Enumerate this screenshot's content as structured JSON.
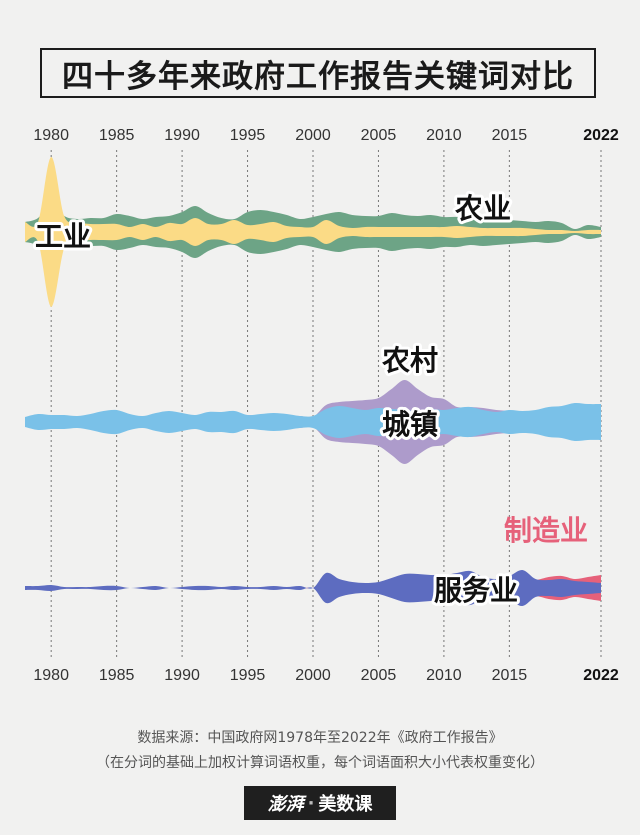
{
  "title": "四十多年来政府工作报告关键词对比",
  "source_line1": "数据来源：中国政府网1978年至2022年《政府工作报告》",
  "source_line2": "（在分词的基础上加权计算词语权重，每个词语面积大小代表权重变化）",
  "logo": {
    "part1": "澎湃",
    "sep": "·",
    "part2": "美数课"
  },
  "colors": {
    "agri": "#6da486",
    "ind": "#fbdb86",
    "rural": "#ad9bcb",
    "town": "#7ac1e8",
    "mfg": "#e6617a",
    "svc": "#5d6cc0"
  },
  "chart_data": {
    "type": "area",
    "x_ticks": [
      "1980",
      "1985",
      "1990",
      "1995",
      "2000",
      "2005",
      "2010",
      "2015",
      "2022"
    ],
    "years": [
      1978,
      1979,
      1980,
      1981,
      1982,
      1983,
      1984,
      1985,
      1986,
      1987,
      1988,
      1989,
      1990,
      1991,
      1992,
      1993,
      1994,
      1995,
      1996,
      1997,
      1998,
      1999,
      2000,
      2001,
      2002,
      2003,
      2004,
      2005,
      2006,
      2007,
      2008,
      2009,
      2010,
      2011,
      2012,
      2013,
      2014,
      2015,
      2016,
      2017,
      2018,
      2019,
      2020,
      2021,
      2022
    ],
    "groups": [
      {
        "series": [
          {
            "name": "农业",
            "color_key": "agri",
            "values": [
              10,
              14,
              30,
              16,
              13,
              14,
              14,
              18,
              16,
              13,
              15,
              16,
              20,
              26,
              19,
              14,
              13,
              20,
              22,
              20,
              17,
              13,
              15,
              18,
              20,
              17,
              16,
              16,
              19,
              17,
              16,
              17,
              15,
              15,
              13,
              14,
              13,
              12,
              11,
              10,
              11,
              9,
              3,
              7,
              5
            ]
          },
          {
            "name": "工业",
            "color_key": "ind",
            "values": [
              10,
              10,
              75,
              16,
              10,
              8,
              8,
              8,
              5,
              8,
              5,
              9,
              8,
              14,
              8,
              8,
              12,
              7,
              8,
              10,
              6,
              5,
              5,
              12,
              6,
              4,
              5,
              5,
              5,
              5,
              5,
              5,
              5,
              6,
              5,
              4,
              4,
              4,
              4,
              3,
              2,
              2,
              1,
              2,
              2
            ]
          }
        ]
      },
      {
        "series": [
          {
            "name": "农村",
            "color_key": "rural",
            "values": [
              4,
              5,
              7,
              6,
              5,
              4,
              5,
              8,
              5,
              4,
              6,
              5,
              5,
              6,
              5,
              7,
              8,
              7,
              6,
              5,
              6,
              6,
              5,
              17,
              20,
              21,
              22,
              24,
              33,
              42,
              33,
              25,
              23,
              15,
              15,
              14,
              12,
              11,
              10,
              9,
              8,
              9,
              10,
              8,
              7
            ]
          },
          {
            "name": "城镇",
            "color_key": "town",
            "values": [
              5,
              8,
              7,
              7,
              6,
              8,
              11,
              12,
              8,
              6,
              9,
              11,
              9,
              7,
              10,
              10,
              11,
              7,
              8,
              9,
              8,
              6,
              6,
              13,
              16,
              14,
              12,
              14,
              13,
              12,
              11,
              13,
              12,
              14,
              15,
              12,
              10,
              12,
              11,
              12,
              15,
              16,
              19,
              18,
              18
            ]
          }
        ]
      },
      {
        "series": [
          {
            "name": "制造业",
            "color_key": "mfg",
            "values": [
              0,
              0,
              0,
              0,
              0,
              0,
              0,
              0,
              0,
              0,
              0,
              0,
              0,
              0,
              0,
              0,
              0,
              0,
              0,
              0,
              0,
              0,
              0,
              3,
              3,
              3,
              4,
              4,
              4,
              4,
              4,
              4,
              5,
              6,
              6,
              5,
              5,
              7,
              10,
              8,
              11,
              12,
              9,
              11,
              13
            ]
          },
          {
            "name": "服务业",
            "color_key": "svc",
            "values": [
              2,
              2,
              3,
              1,
              1,
              1,
              2,
              2,
              0,
              1,
              2,
              0,
              1,
              2,
              2,
              1,
              2,
              1,
              1,
              2,
              1,
              2,
              0,
              15,
              9,
              6,
              5,
              6,
              10,
              14,
              14,
              13,
              13,
              15,
              17,
              11,
              9,
              12,
              18,
              9,
              8,
              9,
              7,
              6,
              5
            ]
          }
        ]
      }
    ]
  }
}
